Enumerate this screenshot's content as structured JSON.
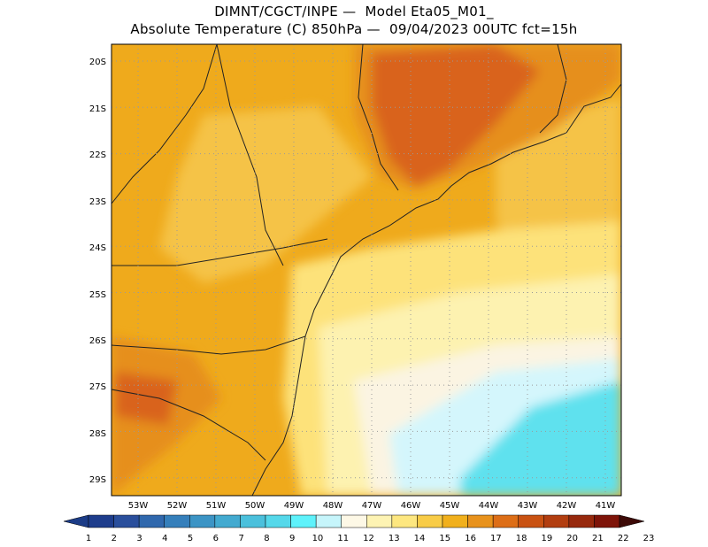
{
  "title": {
    "line1": "DIMNT/CGCT/INPE —  Model Eta05_M01_",
    "line2": "Absolute Temperature (C) 850hPa —  09/04/2023 00UTC fct=15h"
  },
  "map": {
    "lat_labels": [
      "20S",
      "21S",
      "22S",
      "23S",
      "24S",
      "25S",
      "26S",
      "27S",
      "28S",
      "29S"
    ],
    "lon_labels": [
      "53W",
      "52W",
      "51W",
      "50W",
      "49W",
      "48W",
      "47W",
      "46W",
      "45W",
      "44W",
      "43W",
      "42W",
      "41W"
    ],
    "grid": "dotted",
    "colors": {
      "t14": "#fde27a",
      "t15": "#f5c346",
      "t16": "#efaa1c",
      "t17": "#e68f1e",
      "t18": "#d9641a",
      "t12": "#fbf4e2",
      "t13": "#fdf2b0",
      "t11": "#d4f6fc",
      "t10": "#5ee1ee"
    }
  },
  "colorbar": {
    "labels": [
      "1",
      "2",
      "3",
      "4",
      "5",
      "6",
      "7",
      "8",
      "9",
      "10",
      "11",
      "12",
      "13",
      "14",
      "15",
      "16",
      "17",
      "18",
      "19",
      "20",
      "21",
      "22",
      "23"
    ],
    "colors": [
      "#1e3d8c",
      "#2a4f9c",
      "#3068ad",
      "#357fbb",
      "#3c94c5",
      "#43aad0",
      "#4bc0dc",
      "#55d8ea",
      "#5ef2fb",
      "#c6f5fb",
      "#fdf8e6",
      "#fdf3b3",
      "#fde780",
      "#f8cc47",
      "#f1b01c",
      "#e8921c",
      "#dd6e17",
      "#c95212",
      "#b23e10",
      "#97290d",
      "#7e1409"
    ],
    "left_cap_color": "#1c3c87",
    "right_cap_color": "#3d0a07"
  }
}
